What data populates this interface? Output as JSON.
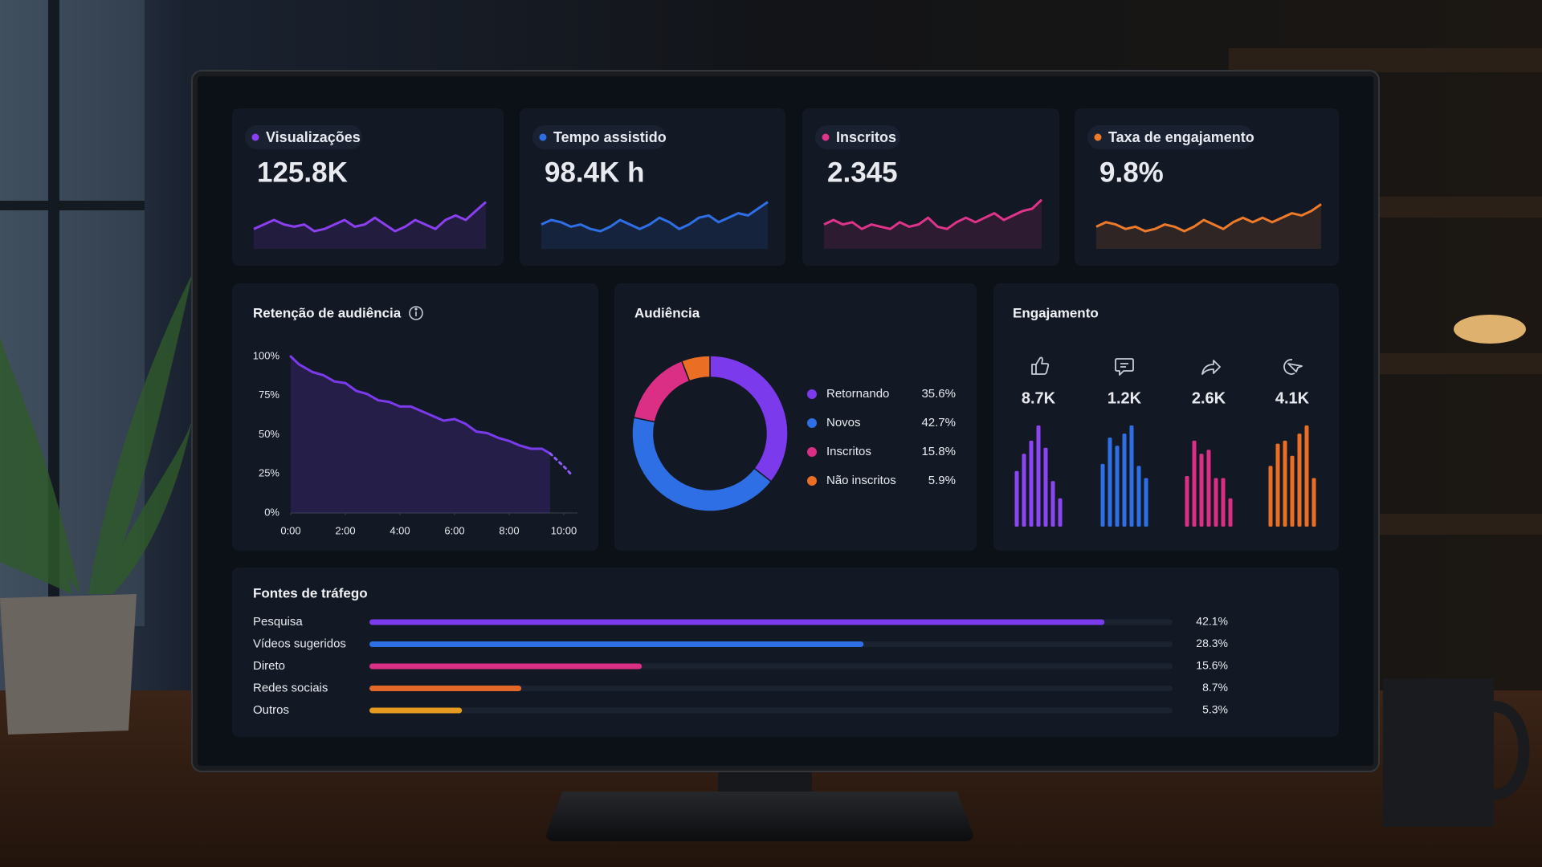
{
  "kpis": [
    {
      "label": "Visualizações",
      "value": "125.8K",
      "color": "#8b3ff0",
      "trend": [
        3,
        4,
        5,
        4,
        3.5,
        4,
        2.5,
        3,
        4,
        5,
        3.5,
        4,
        5.5,
        4,
        2.5,
        3.5,
        5,
        4,
        3,
        5,
        6,
        5,
        7,
        9
      ]
    },
    {
      "label": "Tempo assistido",
      "value": "98.4K h",
      "color": "#2f6fe6",
      "trend": [
        4,
        5,
        4.5,
        3.5,
        4,
        3,
        2.5,
        3.5,
        5,
        4,
        3,
        4,
        5.5,
        4.5,
        3,
        4,
        5.5,
        6,
        4.5,
        5.5,
        6.5,
        6,
        7.5,
        9
      ]
    },
    {
      "label": "Inscritos",
      "value": "2.345",
      "color": "#e0338a",
      "trend": [
        4,
        5,
        4,
        4.5,
        3,
        4,
        3.5,
        3,
        4.5,
        3.5,
        4,
        5.5,
        3.5,
        3,
        4.5,
        5.5,
        4.5,
        5.5,
        6.5,
        5,
        6,
        7,
        7.5,
        9.5
      ]
    },
    {
      "label": "Taxa de engajamento",
      "value": "9.8%",
      "color": "#ee7a2a",
      "trend": [
        3.5,
        4.5,
        4,
        3,
        3.5,
        2.5,
        3,
        4,
        3.5,
        2.5,
        3.5,
        5,
        4,
        3,
        4.5,
        5.5,
        4.5,
        5.5,
        4.5,
        5.5,
        6.5,
        6,
        7,
        8.5
      ]
    }
  ],
  "chart_data": [
    {
      "type": "line",
      "title": "Retenção de audiência",
      "x": [
        0,
        0.3,
        0.8,
        1.2,
        1.6,
        2,
        2.4,
        2.8,
        3.2,
        3.6,
        4,
        4.4,
        4.8,
        5.2,
        5.6,
        6,
        6.4,
        6.8,
        7.2,
        7.6,
        8,
        8.4,
        8.8,
        9.2,
        9.5,
        9.8,
        10.1,
        10.3
      ],
      "series": [
        {
          "color": "#7c3aed",
          "dashed": false,
          "values": [
            100,
            95,
            90,
            88,
            84,
            83,
            78,
            76,
            72,
            71,
            68,
            68,
            65,
            62,
            59,
            60,
            57,
            52,
            51,
            48,
            46,
            43,
            41,
            41,
            38,
            null,
            null,
            null
          ]
        },
        {
          "color": "#8b5cf6",
          "dashed": true,
          "values": [
            null,
            null,
            null,
            null,
            null,
            null,
            null,
            null,
            null,
            null,
            null,
            null,
            null,
            null,
            null,
            null,
            null,
            null,
            null,
            null,
            null,
            null,
            null,
            null,
            38,
            33,
            28,
            24
          ]
        }
      ],
      "xlim": [
        0,
        10.5
      ],
      "ylim": [
        0,
        100
      ],
      "xticks": [
        {
          "value": 0,
          "label": "0:00"
        },
        {
          "value": 2,
          "label": "2:00"
        },
        {
          "value": 4,
          "label": "4:00"
        },
        {
          "value": 6,
          "label": "6:00"
        },
        {
          "value": 8,
          "label": "8:00"
        },
        {
          "value": 10,
          "label": "10:00"
        }
      ],
      "yticks": [
        {
          "value": 0,
          "label": "0%"
        },
        {
          "value": 25,
          "label": "25%"
        },
        {
          "value": 50,
          "label": "50%"
        },
        {
          "value": 75,
          "label": "75%"
        },
        {
          "value": 100,
          "label": "100%"
        }
      ],
      "grid": false
    },
    {
      "type": "donut",
      "title": "Audiência",
      "categories": [
        "Retornando",
        "Novos",
        "Inscritos",
        "Não inscritos"
      ],
      "values": [
        35.6,
        42.7,
        15.8,
        5.9
      ],
      "value_labels": [
        "35.6%",
        "42.7%",
        "15.8%",
        "5.9%"
      ],
      "colors": [
        "#7c3aed",
        "#2f6fe6",
        "#db2f86",
        "#ea6f24"
      ]
    },
    {
      "type": "bar-groups",
      "title": "Engajamento",
      "items": [
        {
          "value": "8.7K",
          "color": "#8b45f2",
          "label_color": "#a98bfa",
          "bars": [
            55,
            72,
            85,
            100,
            78,
            45,
            28
          ]
        },
        {
          "value": "1.2K",
          "color": "#2f6fe6",
          "label_color": "#8fb8fb",
          "bars": [
            62,
            88,
            80,
            92,
            100,
            60,
            48
          ]
        },
        {
          "value": "2.6K",
          "color": "#db2f86",
          "label_color": "#ffffff",
          "bars": [
            50,
            85,
            72,
            76,
            48,
            48,
            28
          ]
        },
        {
          "value": "4.1K",
          "color": "#ea6f24",
          "label_color": "#ffffff",
          "bars": [
            60,
            82,
            85,
            70,
            92,
            100,
            48
          ]
        }
      ]
    },
    {
      "type": "hbar",
      "title": "Fontes de tráfego",
      "categories": [
        "Pesquisa",
        "Vídeos sugeridos",
        "Direto",
        "Redes sociais",
        "Outros"
      ],
      "values": [
        42.1,
        28.3,
        15.6,
        8.7,
        5.3
      ],
      "value_labels": [
        "42.1%",
        "28.3%",
        "15.6%",
        "8.7%",
        "5.3%"
      ],
      "colors": [
        "#7c3aed",
        "#2f6fe6",
        "#db2f86",
        "#e2682a",
        "#e69a1f"
      ],
      "xlim": [
        0,
        46
      ]
    }
  ]
}
